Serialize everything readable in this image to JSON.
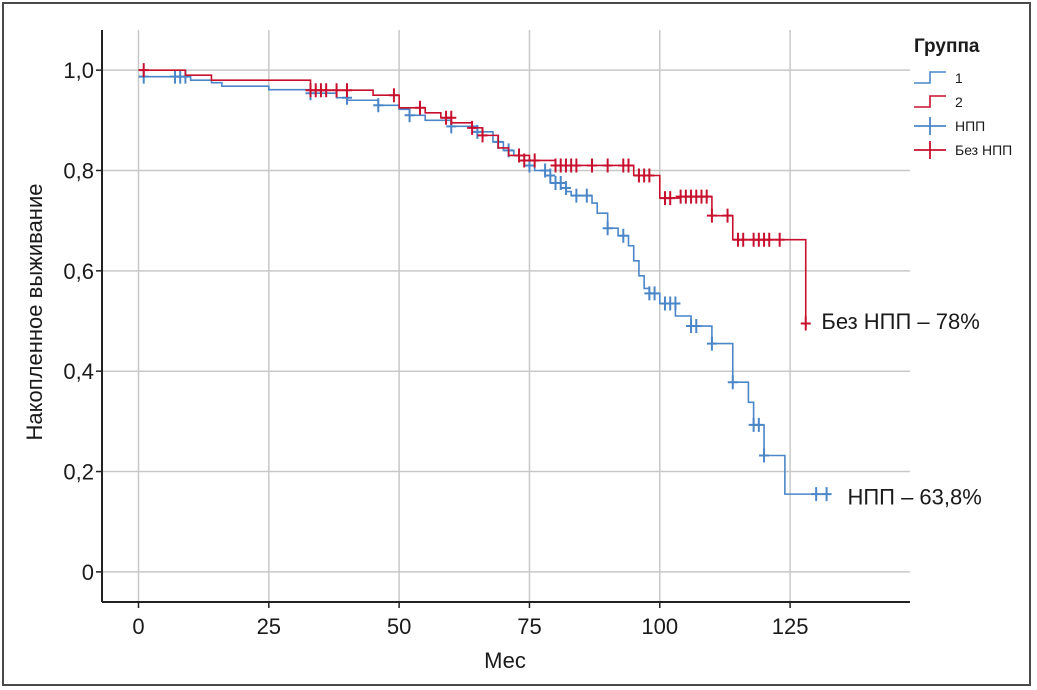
{
  "colors": {
    "npp": "#4a86c8",
    "no_npp": "#c8102e",
    "grid": "#c8c8c8",
    "axis": "#222222"
  },
  "chart_data": {
    "type": "line",
    "subtype": "kaplan-meier step",
    "xlabel": "Мес",
    "ylabel": "Накопленное выживание",
    "xlim": [
      -7,
      148
    ],
    "ylim": [
      -0.06,
      1.08
    ],
    "x_ticks": [
      0,
      25,
      50,
      75,
      100,
      125
    ],
    "x_tick_labels": [
      "0",
      "25",
      "50",
      "75",
      "100",
      "125"
    ],
    "y_ticks": [
      0,
      0.2,
      0.4,
      0.6,
      0.8,
      1.0
    ],
    "y_tick_labels": [
      "0",
      "0,2",
      "0,4",
      "0,6",
      "0,8",
      "1,0"
    ],
    "grid": true,
    "legend": {
      "title": "Группа",
      "placement": "top-right",
      "entries": [
        {
          "label": "1",
          "kind": "line",
          "series": "npp"
        },
        {
          "label": "2",
          "kind": "line",
          "series": "no_npp"
        },
        {
          "label": "НПП",
          "kind": "censor",
          "series": "npp"
        },
        {
          "label": "Без НПП",
          "kind": "censor",
          "series": "no_npp"
        }
      ]
    },
    "series": [
      {
        "id": "npp",
        "group": "1",
        "color": "#4a86c8",
        "x": [
          0,
          1,
          9,
          10,
          14,
          16,
          25,
          33,
          38,
          40,
          46,
          50,
          52,
          55,
          60,
          65,
          68,
          70,
          72,
          74,
          75,
          76,
          78,
          79,
          81,
          82,
          83,
          87,
          88,
          90,
          92,
          94,
          95,
          96,
          97,
          98,
          100,
          103,
          106,
          110,
          114,
          117,
          118,
          120,
          124,
          132
        ],
        "y": [
          1.0,
          0.987,
          0.987,
          0.98,
          0.975,
          0.968,
          0.961,
          0.954,
          0.945,
          0.94,
          0.93,
          0.922,
          0.91,
          0.9,
          0.888,
          0.877,
          0.857,
          0.84,
          0.83,
          0.82,
          0.81,
          0.8,
          0.79,
          0.775,
          0.765,
          0.758,
          0.75,
          0.735,
          0.715,
          0.685,
          0.67,
          0.65,
          0.62,
          0.59,
          0.565,
          0.555,
          0.535,
          0.51,
          0.49,
          0.455,
          0.378,
          0.338,
          0.293,
          0.232,
          0.155,
          0.155
        ],
        "censored": [
          [
            1,
            0.987
          ],
          [
            7,
            0.987
          ],
          [
            8,
            0.987
          ],
          [
            9,
            0.987
          ],
          [
            33,
            0.954
          ],
          [
            40,
            0.945
          ],
          [
            46,
            0.93
          ],
          [
            52,
            0.91
          ],
          [
            60,
            0.888
          ],
          [
            65,
            0.877
          ],
          [
            69,
            0.857
          ],
          [
            71,
            0.84
          ],
          [
            75,
            0.81
          ],
          [
            78,
            0.8
          ],
          [
            79,
            0.79
          ],
          [
            80,
            0.775
          ],
          [
            81,
            0.775
          ],
          [
            82,
            0.765
          ],
          [
            84,
            0.75
          ],
          [
            86,
            0.75
          ],
          [
            90,
            0.685
          ],
          [
            93,
            0.67
          ],
          [
            98,
            0.555
          ],
          [
            99,
            0.555
          ],
          [
            101,
            0.535
          ],
          [
            102,
            0.535
          ],
          [
            103,
            0.535
          ],
          [
            106,
            0.49
          ],
          [
            107,
            0.49
          ],
          [
            110,
            0.455
          ],
          [
            114,
            0.378
          ],
          [
            118,
            0.293
          ],
          [
            119,
            0.293
          ],
          [
            120,
            0.232
          ],
          [
            130,
            0.155
          ],
          [
            132,
            0.155
          ]
        ],
        "annotation": {
          "text": "НПП – 63,8%",
          "x": 136,
          "y": 0.15
        }
      },
      {
        "id": "no_npp",
        "group": "2",
        "color": "#c8102e",
        "x": [
          0,
          1,
          9,
          14,
          33,
          45,
          50,
          55,
          58,
          60,
          64,
          66,
          69,
          71,
          75,
          80,
          95,
          100,
          104,
          110,
          114,
          128
        ],
        "y": [
          1.0,
          1.0,
          0.99,
          0.98,
          0.96,
          0.95,
          0.925,
          0.915,
          0.905,
          0.895,
          0.885,
          0.87,
          0.845,
          0.83,
          0.82,
          0.81,
          0.79,
          0.745,
          0.748,
          0.71,
          0.662,
          0.495
        ],
        "censored": [
          [
            1,
            1.0
          ],
          [
            33,
            0.96
          ],
          [
            34,
            0.96
          ],
          [
            35,
            0.96
          ],
          [
            36,
            0.96
          ],
          [
            38,
            0.96
          ],
          [
            40,
            0.96
          ],
          [
            49,
            0.95
          ],
          [
            54,
            0.925
          ],
          [
            59,
            0.905
          ],
          [
            60,
            0.905
          ],
          [
            64,
            0.885
          ],
          [
            66,
            0.87
          ],
          [
            73,
            0.83
          ],
          [
            74,
            0.82
          ],
          [
            76,
            0.82
          ],
          [
            80,
            0.81
          ],
          [
            81,
            0.81
          ],
          [
            82,
            0.81
          ],
          [
            83,
            0.81
          ],
          [
            84,
            0.81
          ],
          [
            87,
            0.81
          ],
          [
            90,
            0.81
          ],
          [
            93,
            0.81
          ],
          [
            94,
            0.81
          ],
          [
            96,
            0.79
          ],
          [
            97,
            0.79
          ],
          [
            98,
            0.79
          ],
          [
            101,
            0.745
          ],
          [
            102,
            0.745
          ],
          [
            104,
            0.748
          ],
          [
            105,
            0.748
          ],
          [
            106,
            0.748
          ],
          [
            107,
            0.748
          ],
          [
            108,
            0.748
          ],
          [
            109,
            0.748
          ],
          [
            110,
            0.71
          ],
          [
            113,
            0.71
          ],
          [
            115,
            0.662
          ],
          [
            116,
            0.662
          ],
          [
            118,
            0.662
          ],
          [
            119,
            0.662
          ],
          [
            120,
            0.662
          ],
          [
            121,
            0.662
          ],
          [
            123,
            0.662
          ],
          [
            128,
            0.495
          ]
        ],
        "annotation": {
          "text": "Без НПП – 78%",
          "x": 131,
          "y": 0.5
        }
      }
    ]
  }
}
